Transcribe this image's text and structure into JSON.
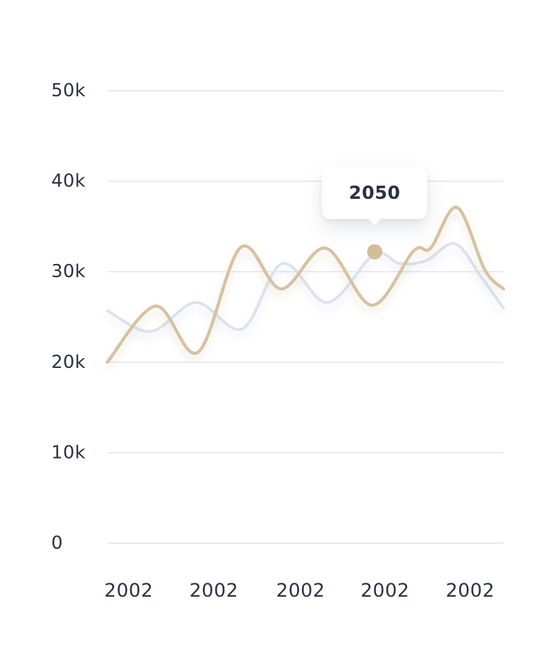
{
  "tooltip": {
    "label": "2050"
  },
  "colors": {
    "beige_line": "#d5c2a2",
    "gray_line": "#dce2ed",
    "hover_dot": "#d5bd97",
    "grid_line": "#e3e3e8",
    "axis_text": "#2d3142",
    "tooltip_text": "#2b3240",
    "tooltip_bg": "#ffffff"
  },
  "chart_data": {
    "type": "line",
    "title": "",
    "xlabel": "",
    "ylabel": "",
    "grid": true,
    "legend": "none",
    "ylim": [
      0,
      50000
    ],
    "y_tick_labels": [
      "50k",
      "40k",
      "30k",
      "20k",
      "10k",
      "0"
    ],
    "y_tick_values": [
      50000,
      40000,
      30000,
      20000,
      10000,
      0
    ],
    "x_tick_labels": [
      "2002",
      "2002",
      "2002",
      "2002",
      "2002"
    ],
    "series": [
      {
        "name": "beige-series",
        "color": "#d5c2a2",
        "stroke_width": 4.5,
        "x_frac": [
          0,
          0.122,
          0.229,
          0.337,
          0.439,
          0.551,
          0.668,
          0.773,
          0.816,
          0.883,
          0.953,
          1
        ],
        "values": [
          20000,
          26200,
          21100,
          32700,
          28100,
          32600,
          26300,
          32300,
          32600,
          37100,
          30200,
          28100
        ]
      },
      {
        "name": "gray-series",
        "color": "#dce2ed",
        "stroke_width": 4,
        "x_frac": [
          0,
          0.11,
          0.224,
          0.341,
          0.442,
          0.556,
          0.673,
          0.738,
          0.804,
          0.878,
          0.944,
          1
        ],
        "values": [
          25700,
          23400,
          26600,
          23700,
          30900,
          26600,
          31900,
          30900,
          31200,
          33100,
          29400,
          26000
        ]
      }
    ],
    "hover_point": {
      "x_frac": 0.675,
      "value": 32200,
      "label": "2050",
      "dot_color": "#d5bd97",
      "dot_radius": 11
    }
  }
}
